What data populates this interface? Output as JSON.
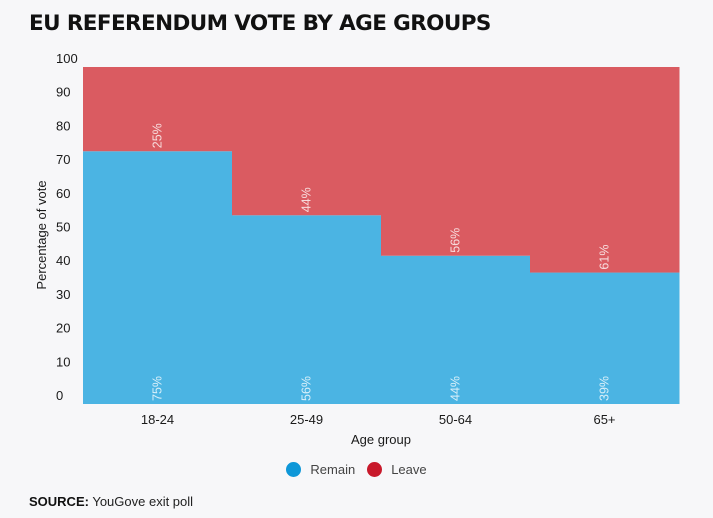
{
  "chart_data": {
    "type": "bar",
    "stacked": true,
    "title": "EU REFERENDUM VOTE BY AGE GROUPS",
    "xlabel": "Age group",
    "ylabel": "Percentage of vote",
    "ylim": [
      0,
      100
    ],
    "yticks": [
      "0",
      "10",
      "20",
      "30",
      "40",
      "50",
      "60",
      "70",
      "80",
      "90",
      "100"
    ],
    "categories": [
      "18-24",
      "25-49",
      "50-64",
      "65+"
    ],
    "series": [
      {
        "name": "Remain",
        "values": [
          75,
          56,
          44,
          39
        ],
        "labels": [
          "75%",
          "56%",
          "44%",
          "39%"
        ],
        "color": "#4bb4e3"
      },
      {
        "name": "Leave",
        "values": [
          25,
          44,
          56,
          61
        ],
        "labels": [
          "25%",
          "44%",
          "56%",
          "61%"
        ],
        "color": "#da5b61"
      }
    ],
    "legend": {
      "position": "bottom-center",
      "items": [
        {
          "label": "Remain",
          "color": "#0e97d8"
        },
        {
          "label": "Leave",
          "color": "#c8192b"
        }
      ]
    },
    "grid": false
  },
  "source": {
    "label": "SOURCE:",
    "text": "YouGove exit poll"
  }
}
